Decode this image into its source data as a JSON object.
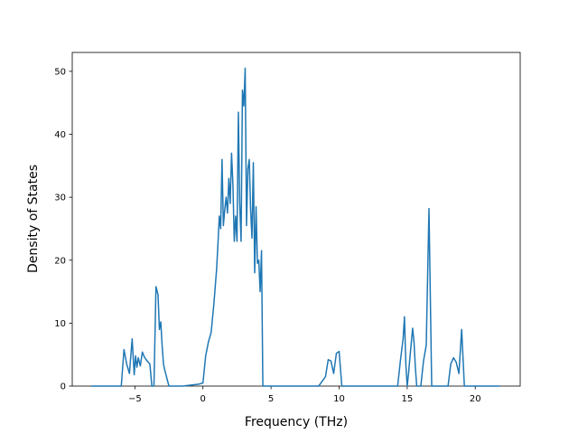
{
  "chart_data": {
    "type": "line",
    "title": "",
    "xlabel": "Frequency (THz)",
    "ylabel": "Density of States",
    "xlim": [
      -9.6,
      23.3
    ],
    "ylim": [
      0,
      53
    ],
    "xticks": [
      -5,
      0,
      5,
      10,
      15,
      20
    ],
    "xtick_labels": [
      "−5",
      "0",
      "5",
      "10",
      "15",
      "20"
    ],
    "yticks": [
      0,
      10,
      20,
      30,
      40,
      50
    ],
    "ytick_labels": [
      "0",
      "10",
      "20",
      "30",
      "40",
      "50"
    ],
    "grid": false,
    "line_color": "#1f77b4",
    "series": [
      {
        "x": [
          -8.2,
          -6.0,
          -5.8,
          -5.6,
          -5.4,
          -5.2,
          -5.05,
          -4.95,
          -4.85,
          -4.75,
          -4.6,
          -4.45,
          -4.3,
          -4.1,
          -3.9,
          -3.75,
          -3.6,
          -3.45,
          -3.3,
          -3.2,
          -3.1,
          -3.0,
          -2.9,
          -2.8,
          -2.5,
          -2.2,
          -1.5,
          -0.3,
          0.0,
          0.2,
          0.4,
          0.6,
          0.8,
          1.0,
          1.1,
          1.2,
          1.3,
          1.4,
          1.5,
          1.6,
          1.7,
          1.8,
          1.9,
          2.0,
          2.1,
          2.2,
          2.3,
          2.4,
          2.5,
          2.6,
          2.7,
          2.8,
          2.9,
          3.0,
          3.1,
          3.2,
          3.3,
          3.4,
          3.5,
          3.6,
          3.7,
          3.8,
          3.9,
          4.0,
          4.1,
          4.2,
          4.3,
          4.4,
          4.5,
          4.6,
          4.7,
          4.8,
          4.9,
          5.0,
          5.1,
          5.2,
          5.3,
          5.4,
          5.5,
          5.6,
          5.7,
          5.8,
          5.9,
          6.0,
          6.1,
          6.2,
          7.0,
          8.5,
          9.0,
          9.2,
          9.4,
          9.6,
          9.8,
          10.0,
          10.2,
          11.0,
          13.0,
          14.3,
          14.5,
          14.7,
          14.8,
          14.9,
          15.0,
          15.1,
          15.2,
          15.4,
          15.5,
          15.6,
          15.7,
          16.0,
          16.2,
          16.4,
          16.6,
          16.8,
          17.0,
          18.0,
          18.2,
          18.4,
          18.6,
          18.8,
          19.0,
          19.2,
          19.4,
          21.8
        ],
        "y": [
          0,
          0,
          5.8,
          3.5,
          2.0,
          7.5,
          1.8,
          4.8,
          3.0,
          4.5,
          3.2,
          5.4,
          4.6,
          4.0,
          3.5,
          0,
          0,
          15.8,
          14.5,
          9.0,
          10.2,
          6.5,
          3.5,
          2.5,
          0,
          0,
          0,
          0.3,
          0.5,
          4.8,
          7.0,
          8.5,
          13.0,
          18.5,
          22.5,
          27.0,
          25.0,
          36.0,
          25.5,
          28.0,
          30.0,
          27.5,
          33.0,
          29.0,
          37.0,
          32.0,
          23.0,
          27.0,
          23.0,
          43.5,
          29.0,
          23.0,
          47.0,
          44.5,
          50.5,
          25.5,
          34.5,
          36.0,
          28.0,
          23.5,
          35.5,
          18.0,
          28.5,
          19.5,
          20.0,
          15.0,
          21.5,
          0,
          0,
          0,
          0,
          0,
          0,
          0,
          0,
          0,
          0,
          0,
          0,
          0,
          0,
          0,
          0,
          0,
          0,
          0,
          0,
          0,
          1.5,
          4.2,
          4.0,
          2.0,
          5.2,
          5.5,
          0,
          0,
          0,
          0,
          4.0,
          7.5,
          11.0,
          3.5,
          0,
          2.0,
          4.5,
          9.2,
          7.0,
          3.0,
          0,
          0,
          4.0,
          6.5,
          28.2,
          0,
          0,
          0,
          3.5,
          4.5,
          3.8,
          2.0,
          9.0,
          0,
          0,
          0
        ]
      }
    ]
  }
}
